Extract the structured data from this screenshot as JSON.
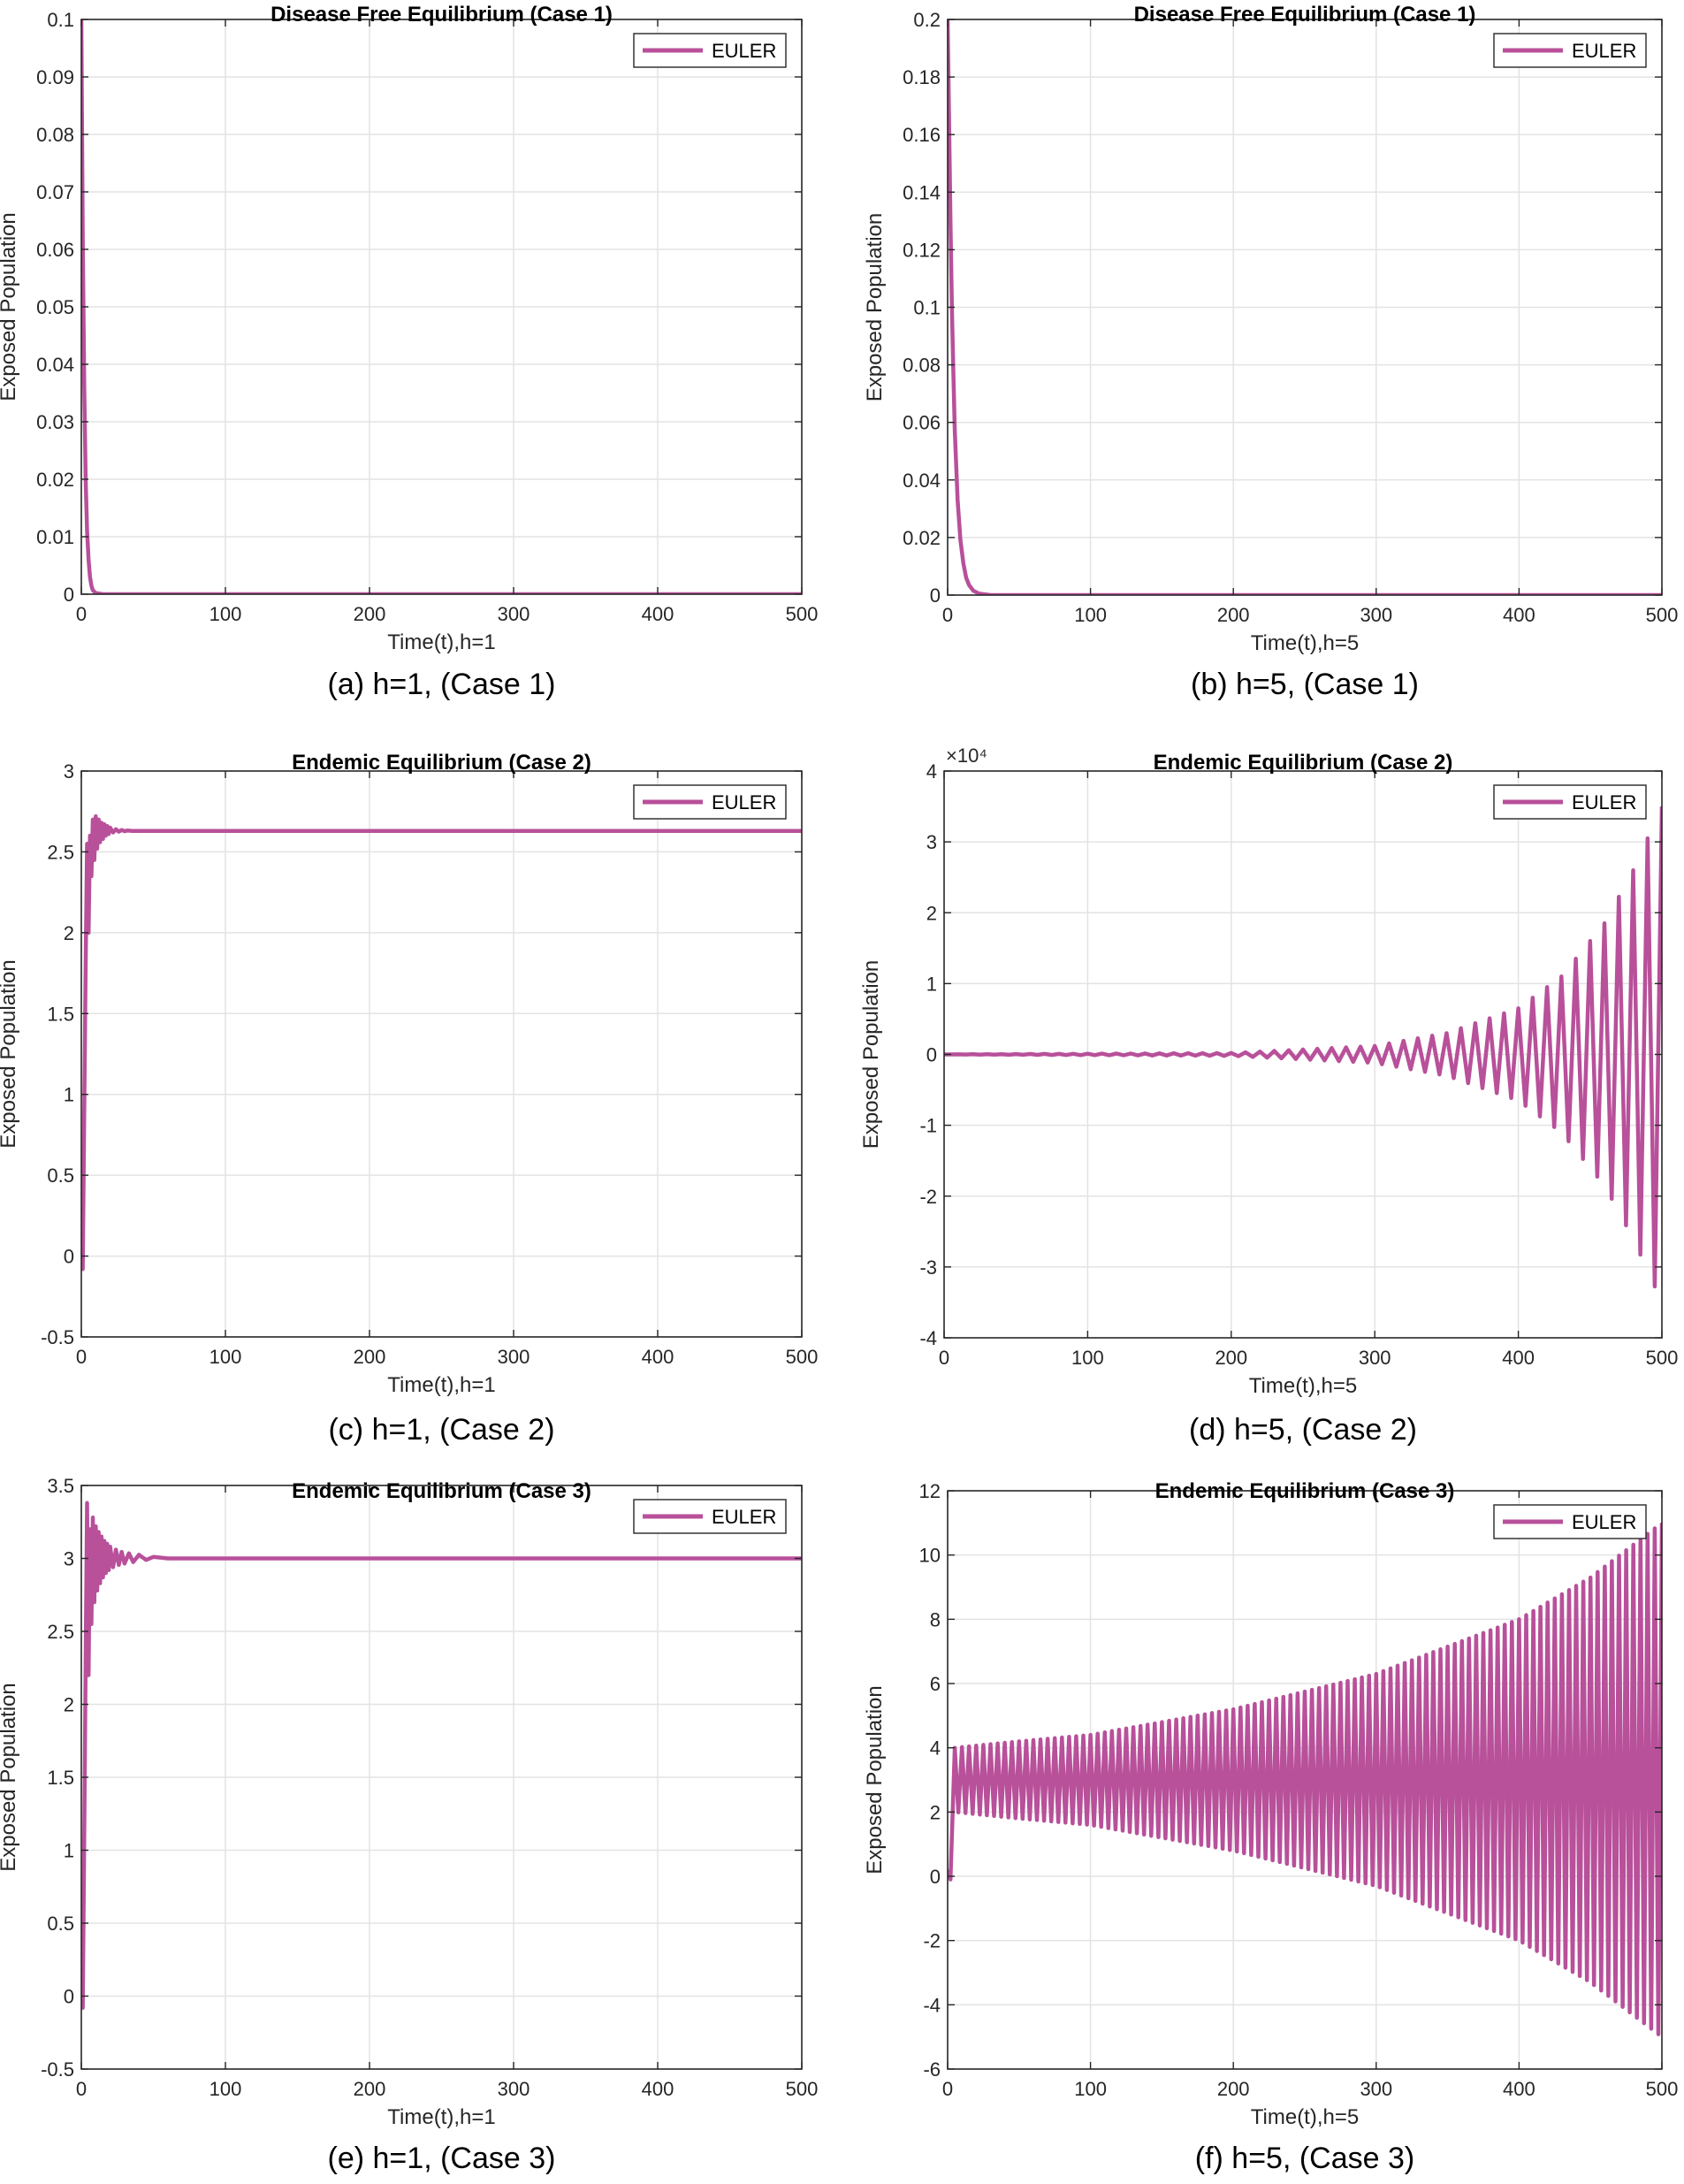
{
  "figure": {
    "panels": [
      {
        "title": "Disease Free Equilibrium (Case 1)",
        "caption": "(a) h=1, (Case 1)",
        "exponent_label": "",
        "legend": "EULER",
        "line_color": "#b8509a",
        "chart_data": {
          "type": "line",
          "title": "Disease Free Equilibrium (Case 1)",
          "xlabel": "Time(t),h=1",
          "ylabel": "Exposed Population",
          "xlim": [
            0,
            500
          ],
          "ylim": [
            0,
            0.1
          ],
          "xticks": [
            "0",
            "100",
            "200",
            "300",
            "400",
            "500"
          ],
          "yticks": [
            "0",
            "0.01",
            "0.02",
            "0.03",
            "0.04",
            "0.05",
            "0.06",
            "0.07",
            "0.08",
            "0.09",
            "0.1"
          ],
          "grid": true,
          "legend_position": "top-right",
          "series": [
            {
              "name": "EULER",
              "x": [
                0,
                1,
                2,
                3,
                4,
                5,
                6,
                7,
                8,
                10,
                15,
                20,
                500
              ],
              "y": [
                0.1,
                0.062,
                0.036,
                0.02,
                0.011,
                0.006,
                0.003,
                0.0015,
                0.0007,
                0.0002,
                0,
                0,
                0
              ]
            }
          ]
        }
      },
      {
        "title": "Disease Free Equilibrium (Case 1)",
        "caption": "(b) h=5, (Case 1)",
        "exponent_label": "",
        "legend": "EULER",
        "line_color": "#b8509a",
        "chart_data": {
          "type": "line",
          "title": "Disease Free Equilibrium (Case 1)",
          "xlabel": "Time(t),h=5",
          "ylabel": "Exposed Population",
          "xlim": [
            0,
            500
          ],
          "ylim": [
            0,
            0.2
          ],
          "xticks": [
            "0",
            "100",
            "200",
            "300",
            "400",
            "500"
          ],
          "yticks": [
            "0",
            "0.02",
            "0.04",
            "0.06",
            "0.08",
            "0.1",
            "0.12",
            "0.14",
            "0.16",
            "0.18",
            "0.2"
          ],
          "grid": true,
          "legend_position": "top-right",
          "series": [
            {
              "name": "EULER",
              "x": [
                0,
                1,
                2,
                3,
                4,
                5,
                7,
                9,
                11,
                13,
                15,
                18,
                22,
                30,
                500
              ],
              "y": [
                0.2,
                0.165,
                0.13,
                0.1,
                0.077,
                0.057,
                0.033,
                0.019,
                0.011,
                0.006,
                0.0035,
                0.0015,
                0.0005,
                0,
                0
              ]
            }
          ]
        }
      },
      {
        "title": "Endemic Equilibrium (Case 2)",
        "caption": "(c) h=1, (Case 2)",
        "exponent_label": "",
        "legend": "EULER",
        "line_color": "#b8509a",
        "chart_data": {
          "type": "line",
          "title": "Endemic Equilibrium (Case 2)",
          "xlabel": "Time(t),h=1",
          "ylabel": "Exposed Population",
          "xlim": [
            0,
            500
          ],
          "ylim": [
            -0.5,
            3
          ],
          "xticks": [
            "0",
            "100",
            "200",
            "300",
            "400",
            "500"
          ],
          "yticks": [
            "-0.5",
            "0",
            "0.5",
            "1",
            "1.5",
            "2",
            "2.5",
            "3"
          ],
          "grid": true,
          "legend_position": "top-right",
          "series": [
            {
              "name": "EULER",
              "x": [
                0,
                1,
                2,
                3,
                4,
                5,
                6,
                7,
                8,
                9,
                10,
                11,
                12,
                13,
                14,
                15,
                16,
                17,
                18,
                19,
                20,
                22,
                24,
                26,
                28,
                30,
                32,
                35,
                40,
                500
              ],
              "y": [
                0.2,
                -0.08,
                0.9,
                1.8,
                2.55,
                2.0,
                2.6,
                2.35,
                2.7,
                2.45,
                2.72,
                2.52,
                2.7,
                2.56,
                2.68,
                2.58,
                2.67,
                2.6,
                2.66,
                2.61,
                2.65,
                2.62,
                2.64,
                2.625,
                2.635,
                2.628,
                2.632,
                2.63,
                2.63,
                2.63
              ]
            }
          ]
        }
      },
      {
        "title": "Endemic Equilibrium (Case 2)",
        "caption": "(d) h=5, (Case 2)",
        "exponent_label": "×10⁴",
        "legend": "EULER",
        "line_color": "#b8509a",
        "chart_data": {
          "type": "line",
          "title": "Endemic Equilibrium (Case 2)",
          "xlabel": "Time(t),h=5",
          "ylabel": "Exposed Population",
          "y_scale_factor": 10000,
          "xlim": [
            0,
            500
          ],
          "ylim": [
            -4,
            4
          ],
          "xticks": [
            "0",
            "100",
            "200",
            "300",
            "400",
            "500"
          ],
          "yticks": [
            "-4",
            "-3",
            "-2",
            "-1",
            "0",
            "1",
            "2",
            "3",
            "4"
          ],
          "grid": true,
          "legend_position": "top-right",
          "series": [
            {
              "name": "EULER",
              "description": "oscillation about 0 with envelope growing exponentially; amplitude in units of 10^4",
              "x": [
                0,
                200,
                300,
                350,
                400,
                430,
                460,
                480,
                500
              ],
              "y_envelope": [
                0.0,
                0.02,
                0.12,
                0.3,
                0.65,
                1.1,
                1.85,
                2.6,
                3.5
              ]
            }
          ]
        }
      },
      {
        "title": "Endemic Equilibrium (Case 3)",
        "caption": "(e) h=1, (Case 3)",
        "exponent_label": "",
        "legend": "EULER",
        "line_color": "#b8509a",
        "chart_data": {
          "type": "line",
          "title": "Endemic Equilibrium (Case 3)",
          "xlabel": "Time(t),h=1",
          "ylabel": "Exposed Population",
          "xlim": [
            0,
            500
          ],
          "ylim": [
            -0.5,
            3.5
          ],
          "xticks": [
            "0",
            "100",
            "200",
            "300",
            "400",
            "500"
          ],
          "yticks": [
            "-0.5",
            "0",
            "0.5",
            "1",
            "1.5",
            "2",
            "2.5",
            "3",
            "3.5"
          ],
          "grid": true,
          "legend_position": "top-right",
          "series": [
            {
              "name": "EULER",
              "x": [
                0,
                1,
                2,
                3,
                4,
                5,
                6,
                7,
                8,
                9,
                10,
                11,
                12,
                13,
                14,
                15,
                16,
                17,
                18,
                19,
                20,
                22,
                24,
                26,
                28,
                30,
                33,
                36,
                40,
                45,
                50,
                60,
                500
              ],
              "y": [
                0.2,
                -0.08,
                1.1,
                2.3,
                3.38,
                2.2,
                3.2,
                2.55,
                3.28,
                2.7,
                3.22,
                2.78,
                3.18,
                2.83,
                3.15,
                2.87,
                3.12,
                2.9,
                3.1,
                2.92,
                3.08,
                2.94,
                3.06,
                2.955,
                3.045,
                2.965,
                3.035,
                2.975,
                3.025,
                2.99,
                3.01,
                3.0,
                3.0
              ]
            }
          ]
        }
      },
      {
        "title": "Endemic Equilibrium (Case 3)",
        "caption": "(f) h=5, (Case 3)",
        "exponent_label": "",
        "legend": "EULER",
        "line_color": "#b8509a",
        "chart_data": {
          "type": "line",
          "title": "Endemic Equilibrium (Case 3)",
          "xlabel": "Time(t),h=5",
          "ylabel": "Exposed Population",
          "xlim": [
            0,
            500
          ],
          "ylim": [
            -6,
            12
          ],
          "xticks": [
            "0",
            "100",
            "200",
            "300",
            "400",
            "500"
          ],
          "yticks": [
            "-6",
            "-4",
            "-2",
            "0",
            "2",
            "4",
            "6",
            "8",
            "10",
            "12"
          ],
          "grid": true,
          "legend_position": "top-right",
          "series": [
            {
              "name": "EULER",
              "description": "oscillation about 3 with slowly growing envelope",
              "center": 3,
              "x": [
                0,
                5,
                50,
                100,
                200,
                300,
                400,
                450,
                500
              ],
              "y_upper": [
                0.2,
                4.0,
                4.2,
                4.4,
                5.2,
                6.3,
                8.0,
                9.3,
                11.0
              ],
              "y_lower": [
                0.2,
                2.0,
                1.8,
                1.6,
                0.8,
                -0.3,
                -2.0,
                -3.3,
                -5.0
              ]
            }
          ]
        }
      }
    ]
  }
}
